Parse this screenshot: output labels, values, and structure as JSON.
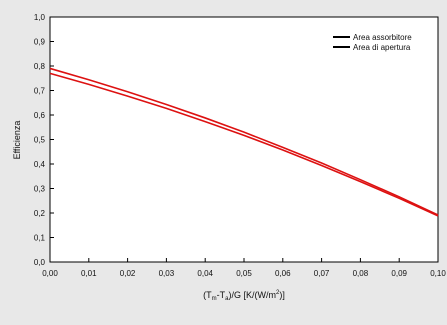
{
  "chart_data": {
    "type": "line",
    "title": "",
    "xlabel_main": "(T",
    "xlabel_sub1": "m",
    "xlabel_mid": "-T",
    "xlabel_sub2": "a",
    "xlabel_rest": ")/G   [K/(W/m",
    "xlabel_sup": "2",
    "xlabel_end": ")]",
    "ylabel": "Efficienza",
    "xlim": [
      0.0,
      0.1
    ],
    "ylim": [
      0.0,
      1.0
    ],
    "x_ticks": [
      "0,00",
      "0,01",
      "0,02",
      "0,03",
      "0,04",
      "0,05",
      "0,06",
      "0,07",
      "0,08",
      "0,09",
      "0,10"
    ],
    "y_ticks": [
      "0,0",
      "0,1",
      "0,2",
      "0,3",
      "0,4",
      "0,5",
      "0,6",
      "0,7",
      "0,8",
      "0,9",
      "1,0"
    ],
    "grid": false,
    "legend_position": "top-right",
    "series": [
      {
        "name": "Area assorbitore",
        "color": "#dd1111",
        "x": [
          0.0,
          0.01,
          0.02,
          0.03,
          0.04,
          0.05,
          0.06,
          0.07,
          0.08,
          0.09,
          0.1
        ],
        "y": [
          0.79,
          0.744,
          0.695,
          0.643,
          0.588,
          0.53,
          0.468,
          0.404,
          0.336,
          0.266,
          0.192
        ]
      },
      {
        "name": "Area di apertura",
        "color": "#dd1111",
        "x": [
          0.0,
          0.01,
          0.02,
          0.03,
          0.04,
          0.05,
          0.06,
          0.07,
          0.08,
          0.09,
          0.1
        ],
        "y": [
          0.77,
          0.725,
          0.677,
          0.627,
          0.573,
          0.517,
          0.457,
          0.394,
          0.328,
          0.26,
          0.188
        ]
      }
    ],
    "legend_line_color": "#000000"
  }
}
